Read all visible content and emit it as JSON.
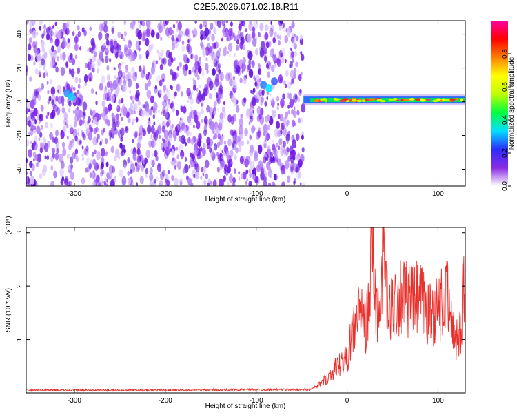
{
  "title": "C2E5.2026.071.02.18.R11",
  "colors": {
    "frame": "#000000",
    "snr_line": "#e8302c",
    "spectrogram_dots": "#7a1cf0"
  },
  "chart_data": [
    {
      "type": "heatmap",
      "xlabel": "Height of straight line (km)",
      "ylabel": "Frequency (Hz)",
      "xlim": [
        -353,
        130
      ],
      "ylim": [
        -50,
        48
      ],
      "xticks": [
        -300,
        -200,
        -100,
        0,
        100
      ],
      "yticks": [
        -40,
        -20,
        0,
        20,
        40
      ],
      "grid": false,
      "colorbar": {
        "label": "Normalized spectral amplitude",
        "range": [
          0,
          1
        ],
        "ticks": [
          "0.0",
          "0.2",
          "0.4",
          "0.6",
          "0.8"
        ],
        "colormap": [
          "#ffffff",
          "#8a2be2",
          "#2c2cff",
          "#00e0ff",
          "#00ff40",
          "#c0ff00",
          "#ffff00",
          "#ff8000",
          "#ff0000",
          "#ff00a0"
        ]
      },
      "regions": [
        {
          "x": [
            -353,
            -48
          ],
          "y": [
            -50,
            48
          ],
          "level": 0.2
        },
        {
          "x": [
            -48,
            130
          ],
          "y": [
            -2,
            4
          ],
          "level": 0.85
        }
      ]
    },
    {
      "type": "line",
      "xlabel": "Height of straight line (km)",
      "ylabel": "SNR (10 * v/v)",
      "multiplier": "(x10⁴)",
      "xlim": [
        -353,
        130
      ],
      "ylim": [
        0,
        3.1
      ],
      "xticks": [
        -300,
        -200,
        -100,
        0,
        100
      ],
      "yticks": [
        1,
        2,
        3
      ],
      "grid": false,
      "series": [
        {
          "x": [
            -353,
            -300,
            -200,
            -100,
            -40,
            -30,
            -20,
            -10,
            0,
            5,
            10,
            15,
            20,
            25,
            28,
            30,
            35,
            40,
            45,
            50,
            60,
            70,
            80,
            90,
            100,
            105,
            110,
            115,
            120,
            125,
            128,
            130
          ],
          "values": [
            0.03,
            0.03,
            0.03,
            0.04,
            0.04,
            0.15,
            0.3,
            0.5,
            0.6,
            1.0,
            1.3,
            1.5,
            1.2,
            1.6,
            3.1,
            1.7,
            1.4,
            2.9,
            1.3,
            1.6,
            1.8,
            1.6,
            1.7,
            1.4,
            1.5,
            1.6,
            1.7,
            1.2,
            1.0,
            1.1,
            1.9,
            1.4
          ]
        }
      ]
    }
  ]
}
